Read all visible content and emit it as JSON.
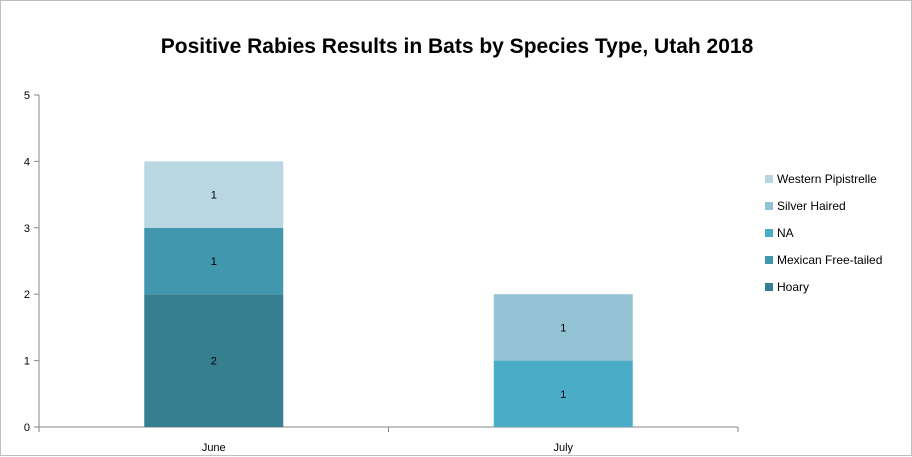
{
  "chart_data": {
    "type": "bar",
    "stacked": true,
    "title": "Positive Rabies Results in Bats by Species Type, Utah 2018",
    "xlabel": "",
    "ylabel": "",
    "categories": [
      "June",
      "July"
    ],
    "ylim": [
      0,
      5
    ],
    "yticks": [
      0,
      1,
      2,
      3,
      4,
      5
    ],
    "grid": false,
    "legend_position": "right",
    "series": [
      {
        "name": "Hoary",
        "values": [
          2,
          0
        ],
        "color": "#357f90"
      },
      {
        "name": "Mexican Free-tailed",
        "values": [
          1,
          0
        ],
        "color": "#4197ad"
      },
      {
        "name": "NA",
        "values": [
          0,
          1
        ],
        "color": "#4aacc6"
      },
      {
        "name": "Silver Haired",
        "values": [
          0,
          1
        ],
        "color": "#93c3d4"
      },
      {
        "name": "Western Pipistrelle",
        "values": [
          1,
          0
        ],
        "color": "#b9d7e3"
      }
    ]
  }
}
